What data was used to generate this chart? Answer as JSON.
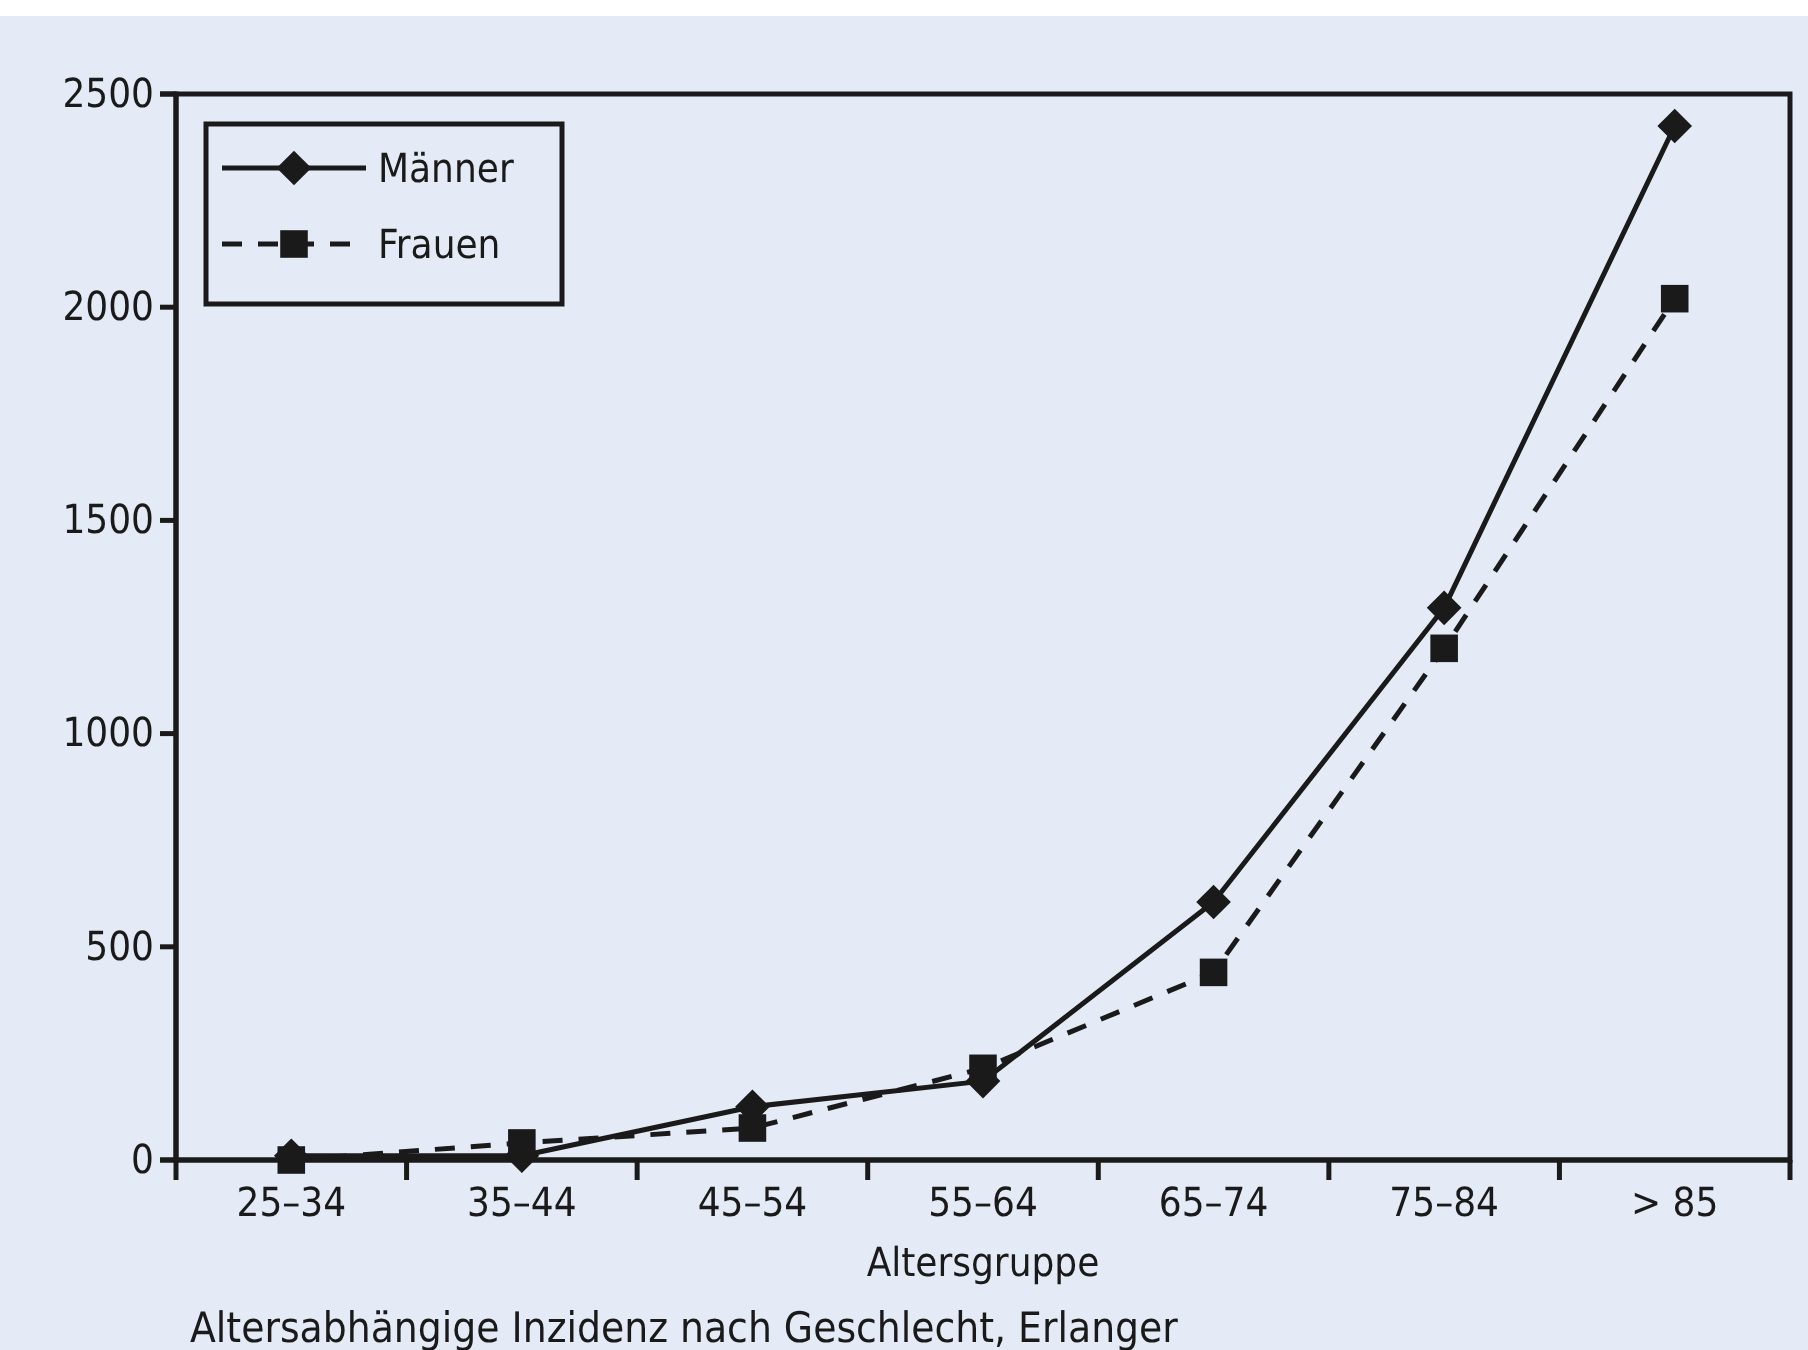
{
  "chart_data": {
    "type": "line",
    "xlabel": "Altersgruppe",
    "categories": [
      "25–34",
      "35–44",
      "45–54",
      "55–64",
      "65–74",
      "75–84",
      "> 85"
    ],
    "series": [
      {
        "name": "Männer",
        "color": "#1a1a1a",
        "values": [
          10,
          10,
          125,
          185,
          605,
          1295,
          2425
        ],
        "marker": "diamond",
        "line_style": "solid"
      },
      {
        "name": "Frauen",
        "color": "#1a1a1a",
        "values": [
          0,
          40,
          75,
          215,
          440,
          1200,
          2020
        ],
        "marker": "square",
        "line_style": "dashed"
      }
    ],
    "ylim": [
      0,
      2500
    ],
    "yticks": [
      0,
      500,
      1000,
      1500,
      2000,
      2500
    ],
    "grid": false,
    "legend": "top left",
    "annotations": [
      "Altersabhängige Inzidenz nach Geschlecht, Erlanger"
    ]
  }
}
